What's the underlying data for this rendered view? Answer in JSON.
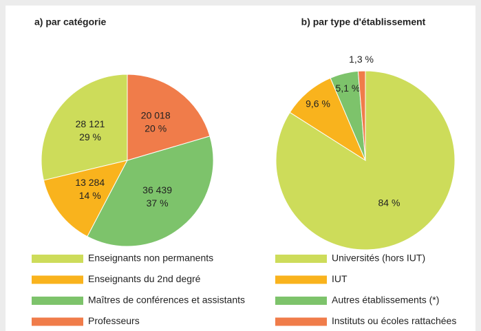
{
  "chart_data": [
    {
      "type": "pie",
      "title": "a) par catégorie",
      "direction": "counterclockwise",
      "categories": [
        "Enseignants non permanents",
        "Enseignants du 2nd degré",
        "Maîtres de conférences et assistants",
        "Professeurs"
      ],
      "values": [
        28121,
        13284,
        36439,
        20018
      ],
      "value_labels": [
        "28 121",
        "13 284",
        "36 439",
        "20 018"
      ],
      "percents": [
        29,
        14,
        37,
        20
      ],
      "percent_labels": [
        "29 %",
        "14 %",
        "37 %",
        "20 %"
      ],
      "colors": [
        "#cddc5a",
        "#f9b31d",
        "#7dc36b",
        "#f07c4a"
      ]
    },
    {
      "type": "pie",
      "title": "b) par type d'établissement",
      "direction": "clockwise",
      "categories": [
        "Universités (hors IUT)",
        "IUT",
        "Autres établissements (*)",
        "Instituts ou écoles rattachées"
      ],
      "values": [
        84,
        9.6,
        5.1,
        1.3
      ],
      "value_labels": [
        "84 %",
        "9,6 %",
        "5,1 %",
        "1,3 %"
      ],
      "colors": [
        "#cddc5a",
        "#f9b31d",
        "#7dc36b",
        "#f07c4a"
      ]
    }
  ]
}
